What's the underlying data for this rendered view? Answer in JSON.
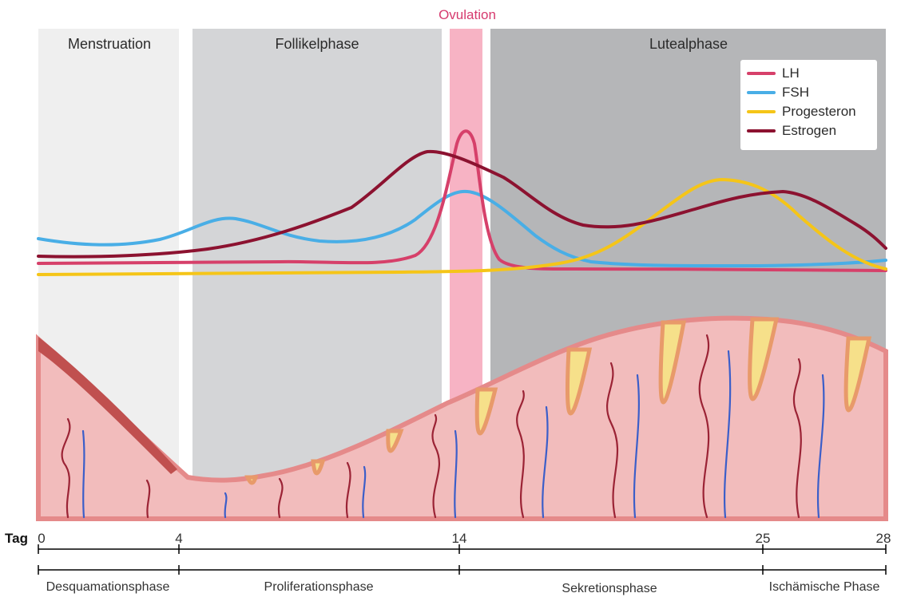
{
  "ovulation_label": "Ovulation",
  "phases_top": {
    "menstruation": "Menstruation",
    "follikel": "Follikelphase",
    "luteal": "Lutealphase"
  },
  "legend": [
    {
      "label": "LH",
      "color": "#d6406a"
    },
    {
      "label": "FSH",
      "color": "#49aee6"
    },
    {
      "label": "Progesteron",
      "color": "#f5c518"
    },
    {
      "label": "Estrogen",
      "color": "#8c1230"
    }
  ],
  "axis": {
    "label": "Tag",
    "ticks": [
      "0",
      "4",
      "14",
      "25",
      "28"
    ]
  },
  "phases_bottom": {
    "desquamation": "Desquamationsphase",
    "proliferation": "Proliferationsphase",
    "sekretion": "Sekretionsphase",
    "ischaemisch": "Ischämische Phase"
  },
  "colors": {
    "menstruation_bg": "#efefef",
    "follikel_bg": "#d4d5d7",
    "luteal_bg": "#b5b6b8",
    "ovulation_band": "#f7b3c4",
    "ovulation_text": "#d63a6e",
    "tissue": "#f2bcbc",
    "tissue_edge": "#e58a8a",
    "gland": "#f6e08a",
    "artery": "#9b2335",
    "vein": "#3b5ec9"
  }
}
